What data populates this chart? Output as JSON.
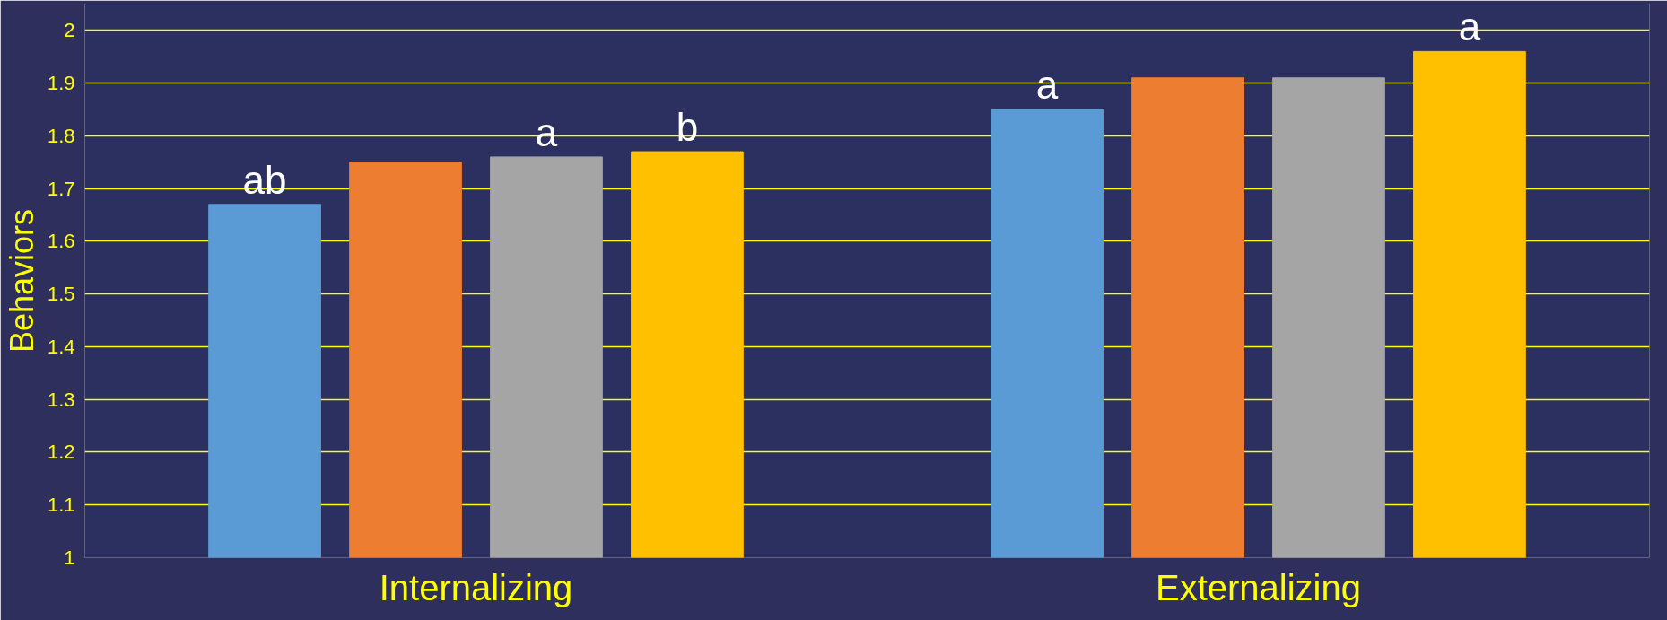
{
  "chart_data": {
    "type": "bar",
    "ylabel": "Behaviors",
    "categories": [
      "Internalizing",
      "Externalizing"
    ],
    "series": [
      {
        "color": "#5b9bd5",
        "values": [
          1.67,
          1.85
        ],
        "value_labels": [
          "ab",
          "a"
        ]
      },
      {
        "color": "#ed7d31",
        "values": [
          1.75,
          1.91
        ],
        "value_labels": [
          null,
          null
        ]
      },
      {
        "color": "#a5a5a5",
        "values": [
          1.76,
          1.91
        ],
        "value_labels": [
          "a",
          null
        ]
      },
      {
        "color": "#ffc000",
        "values": [
          1.77,
          1.96
        ],
        "value_labels": [
          "b",
          "a"
        ]
      }
    ],
    "ylim": [
      1,
      2.05
    ],
    "yticks": [
      1,
      1.1,
      1.2,
      1.3,
      1.4,
      1.5,
      1.6,
      1.7,
      1.8,
      1.9,
      2
    ],
    "grid": "y"
  }
}
